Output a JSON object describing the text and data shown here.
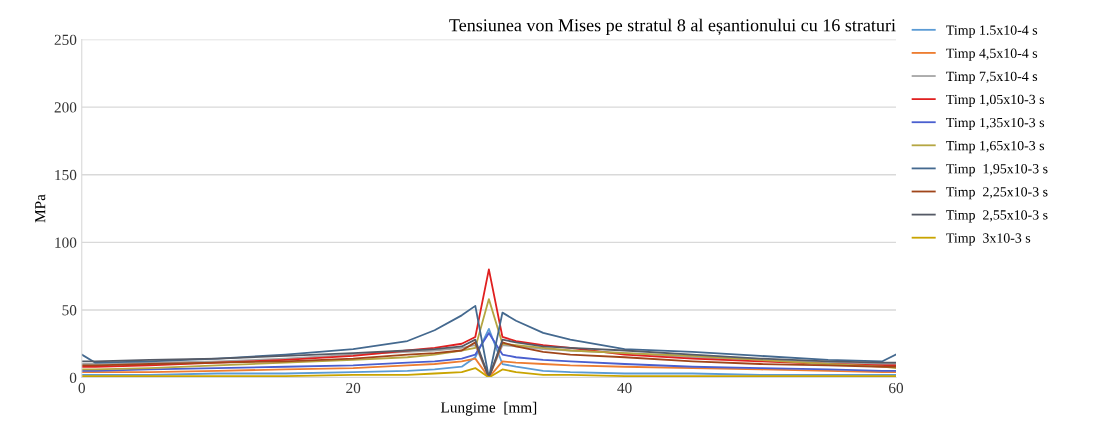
{
  "chart_data": {
    "type": "line",
    "title": "Tensiunea von Mises pe stratul 8 al eșantionului cu 16 straturi",
    "xlabel": "Lungime  [mm]",
    "ylabel": "MPa",
    "x": [
      0,
      1,
      5,
      10,
      15,
      20,
      24,
      26,
      28,
      29,
      30,
      31,
      32,
      34,
      36,
      40,
      45,
      50,
      55,
      59,
      60
    ],
    "xlim": [
      0,
      60
    ],
    "xticks": [
      0,
      20,
      40,
      60
    ],
    "ylim": [
      0,
      250
    ],
    "yticks": [
      0,
      50,
      100,
      150,
      200,
      250
    ],
    "grid": "y",
    "legend": "right",
    "marker": "none",
    "line_style": "solid",
    "series": [
      {
        "name": "Timp 1.5x10-4 s",
        "color": "#5b9bd5",
        "values": [
          2,
          2,
          2,
          3,
          3,
          4,
          5,
          6,
          8,
          15,
          36,
          10,
          8,
          5,
          4,
          3,
          3,
          2,
          2,
          2,
          2
        ]
      },
      {
        "name": "Timp 4,5x10-4 s",
        "color": "#ed7d31",
        "values": [
          4,
          4,
          4,
          5,
          6,
          7,
          9,
          10,
          12,
          14,
          0,
          12,
          11,
          10,
          9,
          8,
          7,
          6,
          5,
          4,
          4
        ]
      },
      {
        "name": "Timp 7,5x10-4 s",
        "color": "#a5a5a5",
        "values": [
          10,
          10,
          11,
          12,
          14,
          17,
          19,
          20,
          22,
          24,
          0,
          24,
          23,
          21,
          20,
          18,
          15,
          13,
          11,
          10,
          10
        ]
      },
      {
        "name": "Timp 1,05x10-3 s",
        "color": "#e02020",
        "values": [
          8,
          8,
          9,
          11,
          13,
          16,
          20,
          22,
          25,
          30,
          80,
          30,
          27,
          24,
          22,
          17,
          14,
          12,
          10,
          9,
          9
        ]
      },
      {
        "name": "Timp 1,35x10-3 s",
        "color": "#4a5fcf",
        "values": [
          5,
          5,
          6,
          7,
          8,
          9,
          11,
          12,
          14,
          17,
          33,
          17,
          15,
          13,
          12,
          10,
          8,
          7,
          6,
          5,
          5
        ]
      },
      {
        "name": "Timp 1,65x10-3 s",
        "color": "#b5a642",
        "values": [
          6,
          6,
          7,
          9,
          11,
          13,
          15,
          17,
          20,
          22,
          58,
          25,
          24,
          22,
          20,
          18,
          16,
          13,
          10,
          8,
          7
        ]
      },
      {
        "name": "Timp  1,95x10-3 s",
        "color": "#44698f",
        "values": [
          17,
          11,
          12,
          14,
          17,
          21,
          27,
          35,
          46,
          53,
          0,
          48,
          42,
          33,
          28,
          21,
          19,
          16,
          13,
          12,
          17
        ]
      },
      {
        "name": "Timp  2,25x10-3 s",
        "color": "#a0451a",
        "values": [
          9,
          9,
          10,
          11,
          12,
          14,
          17,
          18,
          20,
          26,
          0,
          26,
          23,
          19,
          17,
          15,
          12,
          10,
          9,
          8,
          8
        ]
      },
      {
        "name": "Timp  2,55x10-3 s",
        "color": "#555a66",
        "values": [
          12,
          12,
          13,
          14,
          16,
          18,
          20,
          21,
          23,
          28,
          0,
          28,
          26,
          23,
          22,
          20,
          17,
          14,
          12,
          11,
          11
        ]
      },
      {
        "name": "Timp  3x10-3 s",
        "color": "#c9a400",
        "values": [
          1,
          1,
          1,
          1,
          1,
          2,
          2,
          3,
          4,
          7,
          0,
          6,
          4,
          2,
          2,
          1,
          1,
          1,
          1,
          1,
          1
        ]
      }
    ]
  }
}
